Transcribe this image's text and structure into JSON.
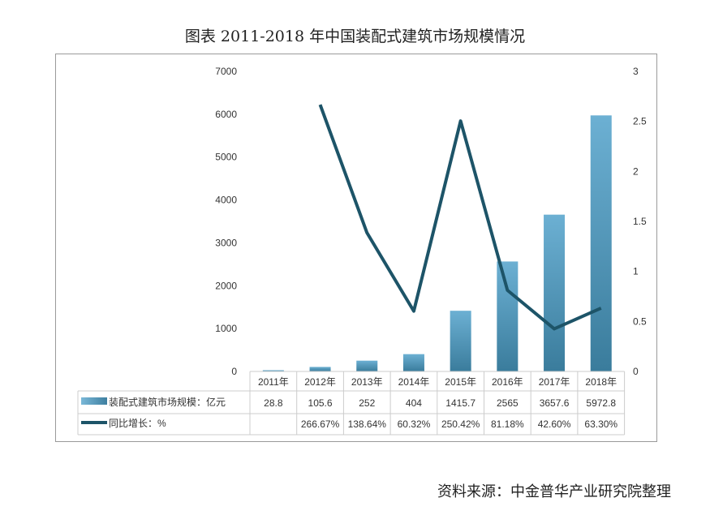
{
  "title": "图表 2011-2018 年中国装配式建筑市场规模情况",
  "source": "资料来源：中金普华产业研究院整理",
  "chart_data": {
    "type": "bar+line",
    "categories": [
      "2011年",
      "2012年",
      "2013年",
      "2014年",
      "2015年",
      "2016年",
      "2017年",
      "2018年"
    ],
    "series": [
      {
        "name": "装配式建筑市场规模：亿元",
        "type": "bar",
        "axis": "left",
        "color": "#4f93b8",
        "values": [
          28.8,
          105.6,
          252,
          404,
          1415.7,
          2565,
          3657.6,
          5972.8
        ],
        "labels": [
          "28.8",
          "105.6",
          "252",
          "404",
          "1415.7",
          "2565",
          "3657.6",
          "5972.8"
        ]
      },
      {
        "name": "同比增长：%",
        "type": "line",
        "axis": "right",
        "color": "#1d5468",
        "values": [
          null,
          2.6667,
          1.3864,
          0.6032,
          2.5042,
          0.8118,
          0.426,
          0.633
        ],
        "labels": [
          "",
          "266.67%",
          "138.64%",
          "60.32%",
          "250.42%",
          "81.18%",
          "42.60%",
          "63.30%"
        ]
      }
    ],
    "left_axis": {
      "ylim": [
        0,
        7000
      ],
      "ticks": [
        "0",
        "1000",
        "2000",
        "3000",
        "4000",
        "5000",
        "6000",
        "7000"
      ]
    },
    "right_axis": {
      "ylim": [
        0,
        3
      ],
      "ticks": [
        "0",
        "0.5",
        "1",
        "1.5",
        "2",
        "2.5",
        "3"
      ]
    },
    "legend": "data-table",
    "grid": false
  }
}
